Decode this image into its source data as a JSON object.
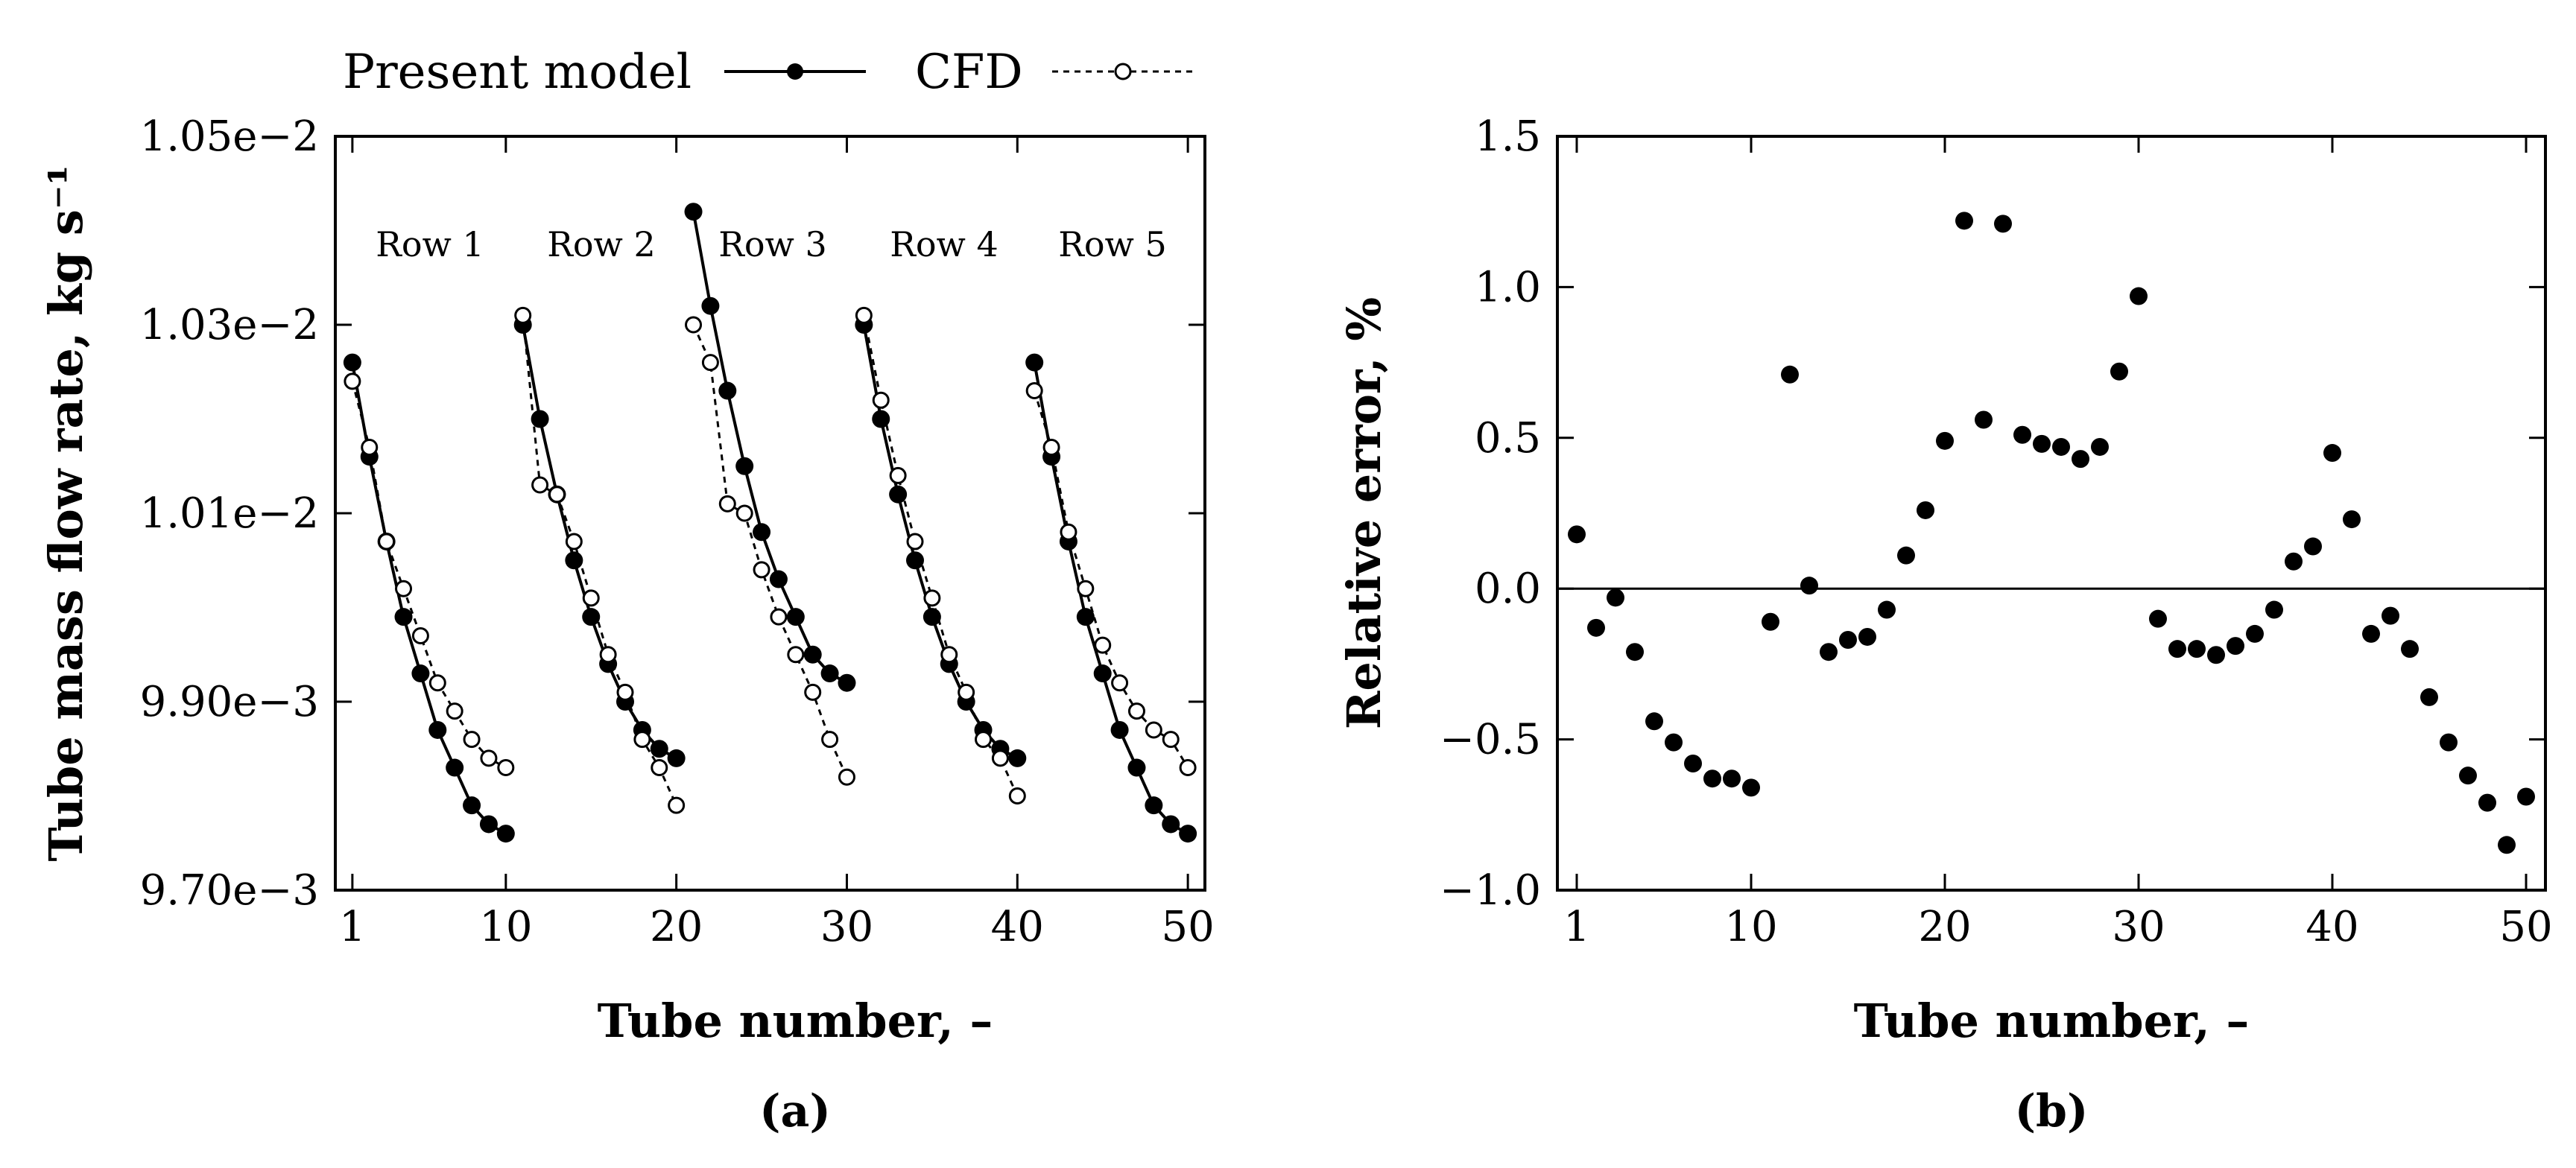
{
  "legend": {
    "model_label": "Present model",
    "cfd_label": "CFD"
  },
  "colors": {
    "ink": "#000000",
    "background": "#ffffff"
  },
  "chart_data": [
    {
      "type": "line",
      "panel": "(a)",
      "xlabel": "Tube number, –",
      "ylabel": "Tube mass flow rate, kg s⁻¹",
      "xlim": [
        0,
        51
      ],
      "ylim": [
        0.0097,
        0.0105
      ],
      "x_ticks": [
        1,
        10,
        20,
        30,
        40,
        50
      ],
      "y_ticks": [
        0.0097,
        0.0099,
        0.0101,
        0.0103,
        0.0105
      ],
      "y_tick_labels": [
        "9.70e−3",
        "9.90e−3",
        "1.01e−2",
        "1.03e−2",
        "1.05e−2"
      ],
      "row_labels": [
        "Row 1",
        "Row 2",
        "Row 3",
        "Row 4",
        "Row 5"
      ],
      "series": [
        {
          "name": "Present model",
          "style": "solid-filled",
          "segments": [
            {
              "x": [
                1,
                2,
                3,
                4,
                5,
                6,
                7,
                8,
                9,
                10
              ],
              "y": [
                0.01026,
                0.01016,
                0.01007,
                0.00999,
                0.00993,
                0.00987,
                0.00983,
                0.00979,
                0.00977,
                0.00976
              ]
            },
            {
              "x": [
                11,
                12,
                13,
                14,
                15,
                16,
                17,
                18,
                19,
                20
              ],
              "y": [
                0.0103,
                0.0102,
                0.01012,
                0.01005,
                0.00999,
                0.00994,
                0.0099,
                0.00987,
                0.00985,
                0.00984
              ]
            },
            {
              "x": [
                21,
                22,
                23,
                24,
                25,
                26,
                27,
                28,
                29,
                30
              ],
              "y": [
                0.01042,
                0.01032,
                0.01023,
                0.01015,
                0.01008,
                0.01003,
                0.00999,
                0.00995,
                0.00993,
                0.00992
              ]
            },
            {
              "x": [
                31,
                32,
                33,
                34,
                35,
                36,
                37,
                38,
                39,
                40
              ],
              "y": [
                0.0103,
                0.0102,
                0.01012,
                0.01005,
                0.00999,
                0.00994,
                0.0099,
                0.00987,
                0.00985,
                0.00984
              ]
            },
            {
              "x": [
                41,
                42,
                43,
                44,
                45,
                46,
                47,
                48,
                49,
                50
              ],
              "y": [
                0.01026,
                0.01016,
                0.01007,
                0.00999,
                0.00993,
                0.00987,
                0.00983,
                0.00979,
                0.00977,
                0.00976
              ]
            }
          ]
        },
        {
          "name": "CFD",
          "style": "dotted-open",
          "segments": [
            {
              "x": [
                1,
                2,
                3,
                4,
                5,
                6,
                7,
                8,
                9,
                10
              ],
              "y": [
                0.01024,
                0.01017,
                0.01007,
                0.01002,
                0.00997,
                0.00992,
                0.00989,
                0.00986,
                0.00984,
                0.00983
              ]
            },
            {
              "x": [
                11,
                12,
                13,
                14,
                15,
                16,
                17,
                18,
                19,
                20
              ],
              "y": [
                0.01031,
                0.01013,
                0.01012,
                0.01007,
                0.01001,
                0.00995,
                0.00991,
                0.00986,
                0.00983,
                0.00979
              ]
            },
            {
              "x": [
                21,
                22,
                23,
                24,
                25,
                26,
                27,
                28,
                29,
                30
              ],
              "y": [
                0.0103,
                0.01026,
                0.01011,
                0.0101,
                0.01004,
                0.00999,
                0.00995,
                0.00991,
                0.00986,
                0.00982
              ]
            },
            {
              "x": [
                31,
                32,
                33,
                34,
                35,
                36,
                37,
                38,
                39,
                40
              ],
              "y": [
                0.01031,
                0.01022,
                0.01014,
                0.01007,
                0.01001,
                0.00995,
                0.00991,
                0.00986,
                0.00984,
                0.0098
              ]
            },
            {
              "x": [
                41,
                42,
                43,
                44,
                45,
                46,
                47,
                48,
                49,
                50
              ],
              "y": [
                0.01023,
                0.01017,
                0.01008,
                0.01002,
                0.00996,
                0.00992,
                0.00989,
                0.00987,
                0.00986,
                0.00983
              ]
            }
          ]
        }
      ]
    },
    {
      "type": "scatter",
      "panel": "(b)",
      "xlabel": "Tube number, –",
      "ylabel": "Relative error, %",
      "xlim": [
        0,
        51
      ],
      "ylim": [
        -1.0,
        1.5
      ],
      "x_ticks": [
        1,
        10,
        20,
        30,
        40,
        50
      ],
      "y_ticks": [
        -1.0,
        -0.5,
        0.0,
        0.5,
        1.0,
        1.5
      ],
      "y_tick_labels": [
        "−1.0",
        "−0.5",
        "0.0",
        "0.5",
        "1.0",
        "1.5"
      ],
      "reference_line": 0.0,
      "series": [
        {
          "name": "Relative error",
          "x": [
            1,
            2,
            3,
            4,
            5,
            6,
            7,
            8,
            9,
            10,
            11,
            12,
            13,
            14,
            15,
            16,
            17,
            18,
            19,
            20,
            21,
            22,
            23,
            24,
            25,
            26,
            27,
            28,
            29,
            30,
            31,
            32,
            33,
            34,
            35,
            36,
            37,
            38,
            39,
            40,
            41,
            42,
            43,
            44,
            45,
            46,
            47,
            48,
            49,
            50
          ],
          "y": [
            0.18,
            -0.13,
            -0.03,
            -0.21,
            -0.44,
            -0.51,
            -0.58,
            -0.63,
            -0.63,
            -0.66,
            -0.11,
            0.71,
            0.01,
            -0.21,
            -0.17,
            -0.16,
            -0.07,
            0.11,
            0.26,
            0.49,
            1.22,
            0.56,
            1.21,
            0.51,
            0.48,
            0.47,
            0.43,
            0.47,
            0.72,
            0.97,
            -0.1,
            -0.2,
            -0.2,
            -0.22,
            -0.19,
            -0.15,
            -0.07,
            0.09,
            0.14,
            0.45,
            0.23,
            -0.15,
            -0.09,
            -0.2,
            -0.36,
            -0.51,
            -0.62,
            -0.71,
            -0.85,
            -0.69
          ]
        }
      ]
    }
  ]
}
